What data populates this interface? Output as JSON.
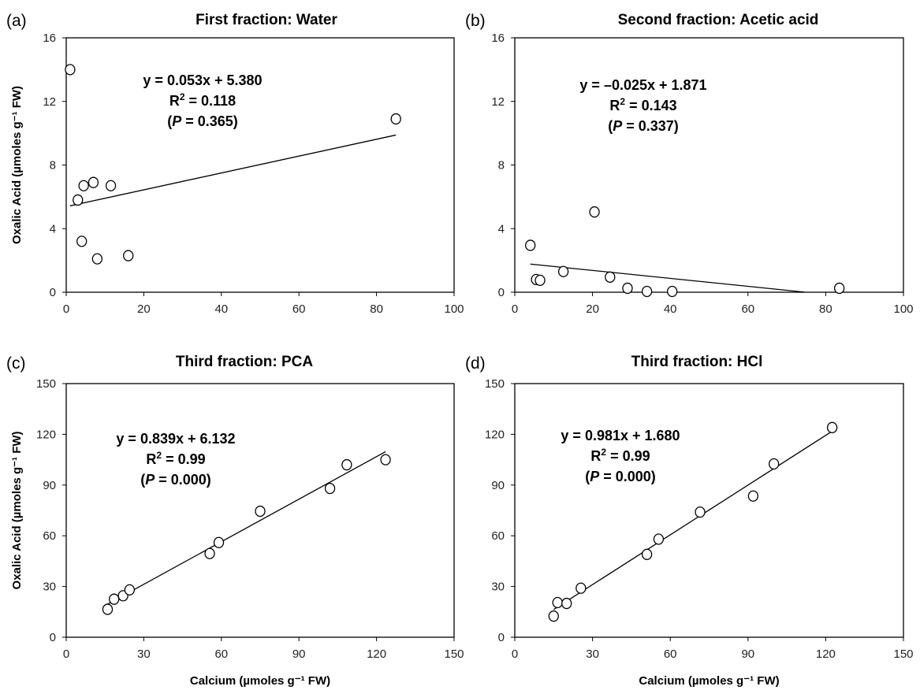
{
  "chart_data": [
    {
      "panel_label": "(a)",
      "type": "scatter",
      "title": "First  fraction: Water",
      "xlabel": "",
      "ylabel": "Oxalic Acid (µmoles g⁻¹ FW)",
      "xlim": [
        0,
        100
      ],
      "ylim": [
        0,
        16
      ],
      "xticks": [
        "0",
        "20",
        "40",
        "60",
        "80",
        "100"
      ],
      "yticks": [
        "0",
        "4",
        "8",
        "12",
        "16"
      ],
      "points": [
        {
          "x": 1,
          "y": 14.0
        },
        {
          "x": 3,
          "y": 5.8
        },
        {
          "x": 4,
          "y": 3.2
        },
        {
          "x": 4.5,
          "y": 6.7
        },
        {
          "x": 7,
          "y": 6.9
        },
        {
          "x": 8,
          "y": 2.1
        },
        {
          "x": 11.5,
          "y": 6.7
        },
        {
          "x": 16,
          "y": 2.3
        },
        {
          "x": 85,
          "y": 10.9
        }
      ],
      "fit": {
        "slope": 0.053,
        "intercept": 5.38,
        "x_range": [
          1,
          85
        ]
      },
      "equation": {
        "line1": "y = 0.053x + 5.380",
        "r2_label": "R",
        "r2_value": " = 0.118",
        "p_open": "(",
        "p_label": "P",
        "p_value": " = 0.365)"
      }
    },
    {
      "panel_label": "(b)",
      "type": "scatter",
      "title": "Second fraction: Acetic acid",
      "xlabel": "",
      "ylabel": "",
      "xlim": [
        0,
        100
      ],
      "ylim": [
        0,
        16
      ],
      "xticks": [
        "0",
        "20",
        "40",
        "60",
        "80",
        "100"
      ],
      "yticks": [
        "0",
        "4",
        "8",
        "12",
        "16"
      ],
      "points": [
        {
          "x": 4,
          "y": 2.95
        },
        {
          "x": 5.5,
          "y": 0.8
        },
        {
          "x": 6.5,
          "y": 0.75
        },
        {
          "x": 12.5,
          "y": 1.3
        },
        {
          "x": 20.5,
          "y": 5.05
        },
        {
          "x": 24.5,
          "y": 0.95
        },
        {
          "x": 29,
          "y": 0.25
        },
        {
          "x": 34,
          "y": 0.05
        },
        {
          "x": 40.5,
          "y": 0.05
        },
        {
          "x": 83.5,
          "y": 0.25
        }
      ],
      "fit": {
        "slope": -0.025,
        "intercept": 1.871,
        "x_range": [
          4,
          74.5
        ]
      },
      "equation": {
        "line1": "y = –0.025x + 1.871",
        "r2_label": "R",
        "r2_value": " = 0.143",
        "p_open": "(",
        "p_label": "P",
        "p_value": " = 0.337)"
      }
    },
    {
      "panel_label": "(c)",
      "type": "scatter",
      "title": "Third fraction: PCA",
      "xlabel": "Calcium (µmoles g⁻¹ FW)",
      "ylabel": "Oxalic Acid (µmoles g⁻¹ FW)",
      "xlim": [
        0,
        150
      ],
      "ylim": [
        0,
        150
      ],
      "xticks": [
        "0",
        "30",
        "60",
        "90",
        "120",
        "150"
      ],
      "yticks": [
        "0",
        "30",
        "60",
        "90",
        "120",
        "150"
      ],
      "points": [
        {
          "x": 16,
          "y": 16.5
        },
        {
          "x": 18.5,
          "y": 22.5
        },
        {
          "x": 22,
          "y": 24.5
        },
        {
          "x": 24.5,
          "y": 28
        },
        {
          "x": 55.5,
          "y": 49.5
        },
        {
          "x": 59,
          "y": 56
        },
        {
          "x": 75,
          "y": 74.5
        },
        {
          "x": 102,
          "y": 88
        },
        {
          "x": 108.5,
          "y": 102
        },
        {
          "x": 123.5,
          "y": 105
        }
      ],
      "fit": {
        "slope": 0.839,
        "intercept": 6.132,
        "x_range": [
          16,
          123.5
        ]
      },
      "equation": {
        "line1": "y = 0.839x + 6.132",
        "r2_label": "R",
        "r2_value": " = 0.99",
        "p_open": "(",
        "p_label": "P",
        "p_value": " = 0.000)"
      }
    },
    {
      "panel_label": "(d)",
      "type": "scatter",
      "title": "Third fraction: HCl",
      "xlabel": "Calcium (µmoles g⁻¹ FW)",
      "ylabel": "",
      "xlim": [
        0,
        150
      ],
      "ylim": [
        0,
        150
      ],
      "xticks": [
        "0",
        "30",
        "60",
        "90",
        "120",
        "150"
      ],
      "yticks": [
        "0",
        "30",
        "60",
        "90",
        "120",
        "150"
      ],
      "points": [
        {
          "x": 15,
          "y": 12.5
        },
        {
          "x": 16.5,
          "y": 20.5
        },
        {
          "x": 20,
          "y": 20
        },
        {
          "x": 25.5,
          "y": 29
        },
        {
          "x": 51,
          "y": 49
        },
        {
          "x": 55.5,
          "y": 58
        },
        {
          "x": 71.5,
          "y": 74
        },
        {
          "x": 92,
          "y": 83.5
        },
        {
          "x": 100,
          "y": 102.5
        },
        {
          "x": 122.5,
          "y": 124
        }
      ],
      "fit": {
        "slope": 0.981,
        "intercept": 1.68,
        "x_range": [
          15,
          122.5
        ]
      },
      "equation": {
        "line1": "y = 0.981x + 1.680",
        "r2_label": "R",
        "r2_value": " = 0.99",
        "p_open": "(",
        "p_label": "P",
        "p_value": " = 0.000)"
      }
    }
  ]
}
